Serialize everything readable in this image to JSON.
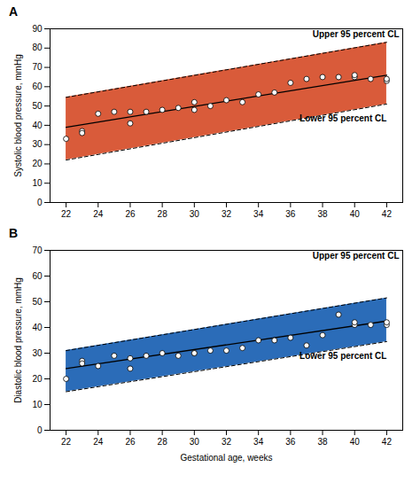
{
  "chart_data": [
    {
      "type": "scatter",
      "title": "A",
      "ylabel": "Systolic blood pressure, mmHg",
      "x": [
        22,
        23,
        23,
        24,
        25,
        26,
        26,
        27,
        28,
        29,
        30,
        30,
        31,
        32,
        33,
        34,
        35,
        36,
        37,
        38,
        39,
        40,
        40,
        41,
        42,
        42
      ],
      "values": [
        33,
        37,
        36,
        46,
        47,
        41,
        47,
        47,
        48,
        49,
        48,
        52,
        50,
        53,
        52,
        56,
        57,
        62,
        64,
        65,
        65,
        65,
        66,
        64,
        63,
        64
      ],
      "fit": {
        "x": [
          22,
          42
        ],
        "values": [
          39.0,
          66.0
        ],
        "color": "#000000"
      },
      "band": {
        "x": [
          22,
          42
        ],
        "lower": [
          22.0,
          51.0
        ],
        "upper": [
          54.5,
          83.0
        ],
        "color": "#D95B3A",
        "line_style": "dashed",
        "upper_label": "Upper 95 percent CL",
        "lower_label": "Lower 95 percent CL"
      },
      "xlim": [
        21.0,
        43.0
      ],
      "xticks": [
        22,
        24,
        26,
        28,
        30,
        32,
        34,
        36,
        38,
        40,
        42
      ],
      "ylim": [
        0,
        90
      ],
      "yticks": [
        0,
        10,
        20,
        30,
        40,
        50,
        60,
        70,
        80,
        90
      ],
      "grid": false
    },
    {
      "type": "scatter",
      "title": "B",
      "ylabel": "Diastolic blood pressure, mmHg",
      "xlabel": "Gestational age, weeks",
      "x": [
        22,
        23,
        23,
        24,
        25,
        26,
        26,
        27,
        28,
        29,
        30,
        30,
        31,
        32,
        33,
        34,
        35,
        36,
        37,
        38,
        39,
        40,
        40,
        41,
        42,
        42
      ],
      "values": [
        20,
        27,
        26,
        25,
        29,
        24,
        28,
        29,
        30,
        29,
        30,
        30,
        31,
        31,
        32,
        35,
        35,
        36,
        33,
        37,
        45,
        41,
        42,
        41,
        41,
        42
      ],
      "fit": {
        "x": [
          22,
          42
        ],
        "values": [
          24.0,
          42.5
        ],
        "color": "#000000"
      },
      "band": {
        "x": [
          22,
          42
        ],
        "lower": [
          15.0,
          34.5
        ],
        "upper": [
          31.0,
          51.5
        ],
        "color": "#2B6CB8",
        "line_style": "dashed",
        "upper_label": "Upper 95 percent CL",
        "lower_label": "Lower 95 percent CL"
      },
      "xlim": [
        21.0,
        43.0
      ],
      "xticks": [
        22,
        24,
        26,
        28,
        30,
        32,
        34,
        36,
        38,
        40,
        42
      ],
      "ylim": [
        0,
        70
      ],
      "yticks": [
        0,
        10,
        20,
        30,
        40,
        50,
        60,
        70
      ],
      "grid": false
    }
  ]
}
